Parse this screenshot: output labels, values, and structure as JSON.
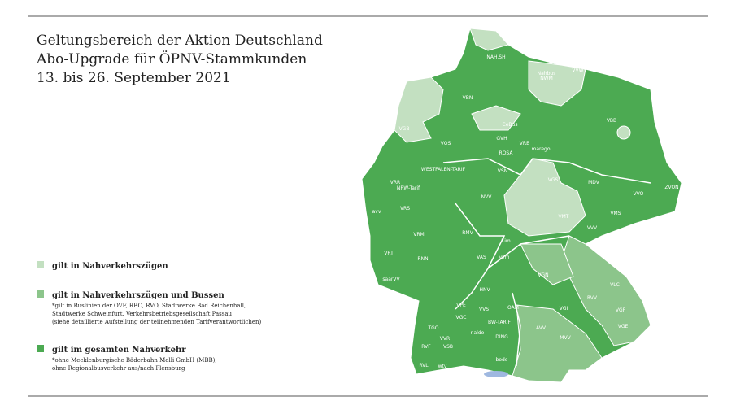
{
  "header": {
    "title_lines": [
      "Geltungsbereich der Aktion Deutschland",
      "Abo-Upgrade für ÖPNV-Stammkunden",
      "13. bis 26. September 2021"
    ]
  },
  "legend": [
    {
      "label": "gilt in Nahverkehrszügen",
      "notes": []
    },
    {
      "label": "gilt in Nahverkehrszügen und Bussen",
      "notes": [
        "*gilt in Buslinien der OVF, RBO, RVO, Stadtwerke Bad Reichenhall,",
        "Stadtwerke Schweinfurt, Verkehrsbetriebsgesellschaft Passau",
        "(siehe detaillierte Aufstellung der teilnehmenden Tarifverantwortlichen)"
      ]
    },
    {
      "label": "gilt im gesamten Nahverkehr",
      "notes": [
        "*ohne Mecklenburgische Bäderbahn Molli GmbH (MBB),",
        "ohne Regionalbusverkehr aus/nach Flensburg"
      ]
    }
  ],
  "map": {
    "regions": [
      "NAH.SH",
      "Nahbus",
      "NWM",
      "VVW*",
      "VBN",
      "VGB",
      "VOS",
      "CeBus",
      "GVH",
      "VRB",
      "ROSA",
      "marego",
      "VBB",
      "WESTFALEN-TARIF",
      "VSN",
      "VRR",
      "NRW-Tarif",
      "avv",
      "VRS",
      "NVV",
      "VGS",
      "MDV",
      "VVO",
      "ZVON",
      "VMT",
      "VMS",
      "VVV",
      "RMV",
      "VRM",
      "VRT",
      "RNN",
      "saarVV",
      "Kim",
      "vvm",
      "VAS",
      "VGN",
      "HNV",
      "VPE",
      "VVS",
      "OAM",
      "VGC",
      "VLC",
      "RVV",
      "VGI",
      "TGO",
      "naldo",
      "BW-TARIF",
      "DING",
      "AVV",
      "VGF",
      "RVF",
      "VVR",
      "VSB",
      "RVL",
      "wtv",
      "bodo",
      "MVV",
      "VGE"
    ]
  }
}
